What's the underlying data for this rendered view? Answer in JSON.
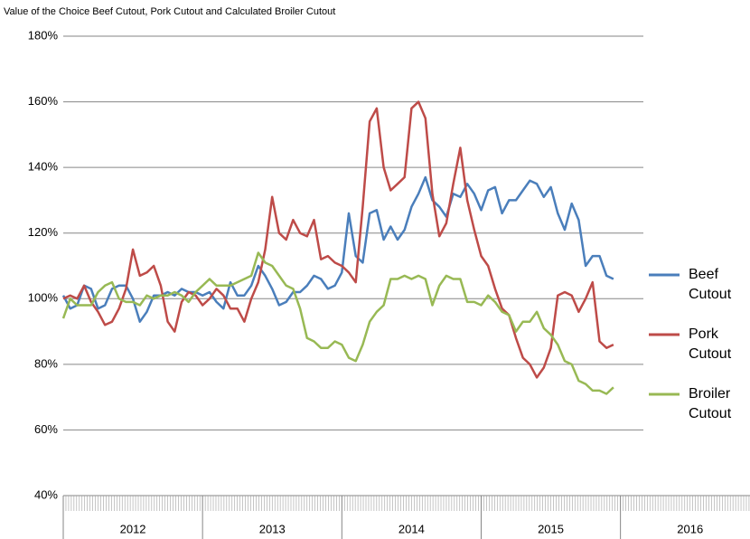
{
  "chart_data": {
    "type": "line",
    "title": "Value of the Choice Beef Cutout, Pork Cutout and Calculated Broiler Cutout",
    "x": [
      2012,
      2012.05,
      2012.1,
      2012.15,
      2012.2,
      2012.25,
      2012.3,
      2012.35,
      2012.4,
      2012.45,
      2012.5,
      2012.55,
      2012.6,
      2012.65,
      2012.7,
      2012.75,
      2012.8,
      2012.85,
      2012.9,
      2012.95,
      2013,
      2013.05,
      2013.1,
      2013.15,
      2013.2,
      2013.25,
      2013.3,
      2013.35,
      2013.4,
      2013.45,
      2013.5,
      2013.55,
      2013.6,
      2013.65,
      2013.7,
      2013.75,
      2013.8,
      2013.85,
      2013.9,
      2013.95,
      2014,
      2014.05,
      2014.1,
      2014.15,
      2014.2,
      2014.25,
      2014.3,
      2014.35,
      2014.4,
      2014.45,
      2014.5,
      2014.55,
      2014.6,
      2014.65,
      2014.7,
      2014.75,
      2014.8,
      2014.85,
      2014.9,
      2014.95,
      2015,
      2015.05,
      2015.1,
      2015.15,
      2015.2,
      2015.25,
      2015.3,
      2015.35,
      2015.4,
      2015.45,
      2015.5,
      2015.55,
      2015.6,
      2015.65,
      2015.7,
      2015.75,
      2015.8,
      2015.85,
      2015.9,
      2015.95
    ],
    "series": [
      {
        "name": "Beef Cutout",
        "color": "#4a7ebb",
        "values": [
          101,
          97,
          98,
          104,
          103,
          97,
          98,
          103,
          104,
          104,
          100,
          93,
          96,
          101,
          101,
          102,
          101,
          103,
          102,
          102,
          101,
          102,
          99,
          97,
          105,
          101,
          101,
          104,
          110,
          107,
          103,
          98,
          99,
          102,
          102,
          104,
          107,
          106,
          103,
          104,
          108,
          126,
          113,
          111,
          126,
          127,
          118,
          122,
          118,
          121,
          128,
          132,
          137,
          130,
          128,
          125,
          132,
          131,
          135,
          132,
          127,
          133,
          134,
          126,
          130,
          130,
          133,
          136,
          135,
          131,
          134,
          126,
          121,
          129,
          124,
          110,
          113,
          113,
          107,
          106
        ]
      },
      {
        "name": "Pork Cutout",
        "color": "#be4b48",
        "values": [
          100,
          101,
          100,
          104,
          99,
          96,
          92,
          93,
          97,
          103,
          115,
          107,
          108,
          110,
          104,
          93,
          90,
          99,
          102,
          101,
          98,
          100,
          103,
          101,
          97,
          97,
          93,
          100,
          105,
          115,
          131,
          120,
          118,
          124,
          120,
          119,
          124,
          112,
          113,
          111,
          110,
          108,
          105,
          128,
          154,
          158,
          140,
          133,
          135,
          137,
          158,
          160,
          155,
          132,
          119,
          123,
          135,
          146,
          130,
          121,
          113,
          110,
          103,
          97,
          95,
          88,
          82,
          80,
          76,
          79,
          85,
          101,
          102,
          101,
          96,
          100,
          105,
          87,
          85,
          86
        ]
      },
      {
        "name": "Broiler Cutout",
        "color": "#98b954",
        "values": [
          94,
          100,
          98,
          98,
          98,
          102,
          104,
          105,
          100,
          99,
          99,
          98,
          101,
          100,
          101,
          101,
          102,
          101,
          99,
          102,
          104,
          106,
          104,
          104,
          104,
          105,
          106,
          107,
          114,
          111,
          110,
          107,
          104,
          103,
          97,
          88,
          87,
          85,
          85,
          87,
          86,
          82,
          81,
          86,
          93,
          96,
          98,
          106,
          106,
          107,
          106,
          107,
          106,
          98,
          104,
          107,
          106,
          106,
          99,
          99,
          98,
          101,
          99,
          96,
          95,
          90,
          93,
          93,
          96,
          91,
          89,
          86,
          81,
          80,
          75,
          74,
          72,
          72,
          71,
          73
        ]
      }
    ],
    "xlim": [
      2012,
      2016.93
    ],
    "xticks": [
      {
        "value": 2012.5,
        "label": "2012"
      },
      {
        "value": 2013.5,
        "label": "2013"
      },
      {
        "value": 2014.5,
        "label": "2014"
      },
      {
        "value": 2015.5,
        "label": "2015"
      },
      {
        "value": 2016.5,
        "label": "2016"
      }
    ],
    "ylim": [
      40,
      180
    ],
    "yticks": [
      {
        "value": 40,
        "label": "40%"
      },
      {
        "value": 60,
        "label": "60%"
      },
      {
        "value": 80,
        "label": "80%"
      },
      {
        "value": 100,
        "label": "100%"
      },
      {
        "value": 120,
        "label": "120%"
      },
      {
        "value": 140,
        "label": "140%"
      },
      {
        "value": 160,
        "label": "160%"
      },
      {
        "value": 180,
        "label": "180%"
      }
    ],
    "grid": true,
    "legend": "right"
  }
}
